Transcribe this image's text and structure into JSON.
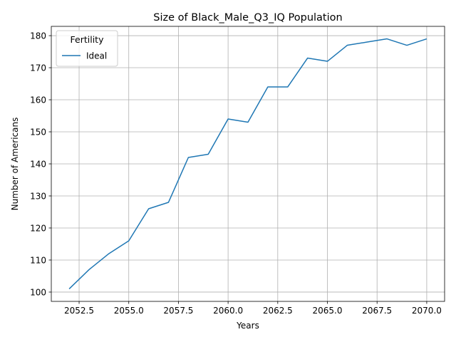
{
  "chart_data": {
    "type": "line",
    "title": "Size of Black_Male_Q3_IQ Population",
    "xlabel": "Years",
    "ylabel": "Number of Americans",
    "xlim": [
      2051.1,
      2070.9
    ],
    "ylim": [
      97.1,
      182.9
    ],
    "xticks": [
      2052.5,
      2055.0,
      2057.5,
      2060.0,
      2062.5,
      2065.0,
      2067.5,
      2070.0
    ],
    "xtick_labels": [
      "2052.5",
      "2055.0",
      "2057.5",
      "2060.0",
      "2062.5",
      "2065.0",
      "2067.5",
      "2070.0"
    ],
    "yticks": [
      100,
      110,
      120,
      130,
      140,
      150,
      160,
      170,
      180
    ],
    "ytick_labels": [
      "100",
      "110",
      "120",
      "130",
      "140",
      "150",
      "160",
      "170",
      "180"
    ],
    "grid": true,
    "legend": {
      "title": "Fertility",
      "placement": "top-left"
    },
    "series": [
      {
        "name": "Ideal",
        "color": "#1f77b4",
        "x": [
          2052,
          2053,
          2054,
          2055,
          2056,
          2057,
          2058,
          2059,
          2060,
          2061,
          2062,
          2063,
          2064,
          2065,
          2066,
          2067,
          2068,
          2069,
          2070
        ],
        "y": [
          101,
          107,
          112,
          116,
          126,
          128,
          142,
          143,
          154,
          153,
          164,
          164,
          173,
          172,
          177,
          178,
          179,
          177,
          179
        ]
      }
    ]
  }
}
